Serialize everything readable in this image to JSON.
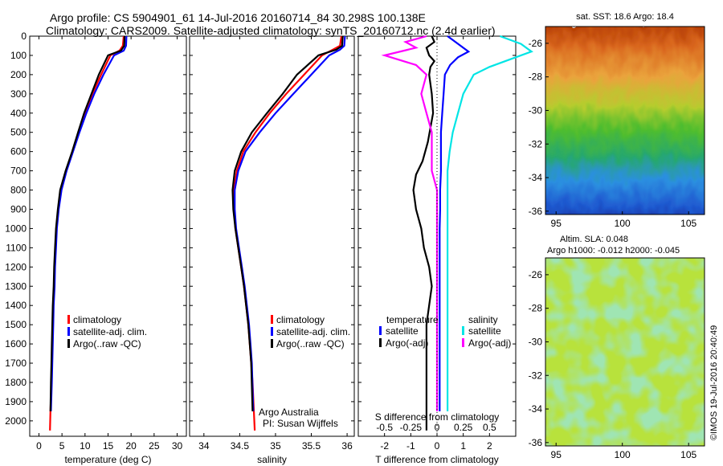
{
  "title_line1": "Argo profile: CS 5904901_61 14-Jul-2016 20160714_84 30.298S 100.138E",
  "title_line2": "Climatology: CARS2009. Satellite-adjusted climatology: synTS_20160712.nc (2.4d earlier)",
  "credit": "©IMOS 19-Jul-2016 20:40:49",
  "colors": {
    "climatology": "#ff0000",
    "satellite": "#0000ff",
    "argo": "#000000",
    "sal_sat": "#00e5e5",
    "sal_argo": "#ff00ff"
  },
  "chart_data": [
    {
      "type": "line",
      "xlabel": "temperature (deg C)",
      "xlim": [
        -2,
        32
      ],
      "xticks": [
        0,
        5,
        10,
        15,
        20,
        25,
        30
      ],
      "ylim": [
        2080,
        0
      ],
      "yticks": [
        0,
        100,
        200,
        300,
        400,
        500,
        600,
        700,
        800,
        900,
        1000,
        1100,
        1200,
        1300,
        1400,
        1500,
        1600,
        1700,
        1800,
        1900,
        2000
      ],
      "legend": [
        "climatology",
        "satellite-adj. clim.",
        "Argo(..raw -QC)"
      ],
      "legend_position": "lower-center",
      "series": [
        {
          "name": "climatology",
          "x": [
            18.4,
            18.2,
            17.5,
            15.5,
            13.5,
            11.6,
            10.0,
            8.6,
            7.3,
            5.9,
            4.8,
            4.2,
            3.8,
            3.6,
            3.4,
            3.3,
            3.1,
            3.0,
            2.9,
            2.8,
            2.7,
            2.5,
            2.4
          ],
          "y": [
            0,
            50,
            75,
            100,
            200,
            300,
            400,
            500,
            600,
            700,
            800,
            900,
            1000,
            1100,
            1200,
            1300,
            1400,
            1500,
            1600,
            1700,
            1800,
            1950,
            2050
          ]
        },
        {
          "name": "satellite-adj. clim.",
          "x": [
            19.0,
            18.9,
            18.4,
            16.3,
            14.0,
            12.0,
            10.3,
            8.8,
            7.4,
            6.0,
            4.9,
            4.3,
            3.9,
            3.7,
            3.5,
            3.4,
            3.2,
            3.1,
            3.0,
            2.9,
            2.8,
            2.6
          ],
          "y": [
            0,
            50,
            75,
            100,
            200,
            300,
            400,
            500,
            600,
            700,
            800,
            900,
            1000,
            1100,
            1200,
            1300,
            1400,
            1500,
            1600,
            1700,
            1800,
            1950
          ]
        },
        {
          "name": "Argo(..raw -QC)",
          "x": [
            18.6,
            18.5,
            17.8,
            15.0,
            13.0,
            11.4,
            9.8,
            8.5,
            7.2,
            5.8,
            4.6,
            4.1,
            3.7,
            3.5,
            3.3,
            3.2,
            3.0,
            2.9,
            2.8,
            2.7,
            2.6,
            2.5
          ],
          "y": [
            0,
            50,
            75,
            100,
            200,
            300,
            400,
            500,
            600,
            700,
            800,
            900,
            1000,
            1100,
            1200,
            1300,
            1400,
            1500,
            1600,
            1700,
            1800,
            1950
          ]
        }
      ]
    },
    {
      "type": "line",
      "xlabel": "salinity",
      "xlim": [
        33.8,
        36.1
      ],
      "xticks": [
        34,
        34.5,
        35,
        35.5,
        36
      ],
      "ylim": [
        2080,
        0
      ],
      "legend": [
        "climatology",
        "satellite-adj. clim.",
        "Argo(..raw -QC)"
      ],
      "legend_position": "lower-right",
      "annotations": [
        "Argo Australia",
        "PI: Susan Wijffels"
      ],
      "series": [
        {
          "name": "climatology",
          "x": [
            35.92,
            35.9,
            35.8,
            35.65,
            35.4,
            35.15,
            34.92,
            34.72,
            34.55,
            34.46,
            34.42,
            34.42,
            34.44,
            34.48,
            34.52,
            34.56,
            34.59,
            34.62,
            34.64,
            34.66,
            34.68,
            34.71
          ],
          "y": [
            0,
            50,
            70,
            100,
            200,
            300,
            400,
            500,
            600,
            700,
            800,
            900,
            1000,
            1100,
            1200,
            1300,
            1400,
            1500,
            1600,
            1700,
            1800,
            2050
          ]
        },
        {
          "name": "satellite-adj. clim.",
          "x": [
            35.97,
            35.96,
            35.9,
            35.75,
            35.5,
            35.25,
            35.0,
            34.78,
            34.58,
            34.48,
            34.43,
            34.43,
            34.45,
            34.49,
            34.53,
            34.57,
            34.6,
            34.63,
            34.65,
            34.67,
            34.69
          ],
          "y": [
            0,
            50,
            70,
            100,
            200,
            300,
            400,
            500,
            600,
            700,
            800,
            900,
            1000,
            1100,
            1200,
            1300,
            1400,
            1500,
            1600,
            1700,
            1950
          ]
        },
        {
          "name": "Argo(..raw -QC)",
          "x": [
            35.94,
            35.93,
            35.85,
            35.6,
            35.3,
            35.1,
            34.88,
            34.67,
            34.52,
            34.43,
            34.4,
            34.41,
            34.44,
            34.48,
            34.52,
            34.56,
            34.59,
            34.62,
            34.64,
            34.66,
            34.68
          ],
          "y": [
            0,
            50,
            70,
            100,
            200,
            300,
            400,
            500,
            600,
            700,
            800,
            900,
            1000,
            1100,
            1200,
            1300,
            1400,
            1500,
            1600,
            1700,
            1950
          ]
        }
      ]
    },
    {
      "type": "line",
      "xlabel": "T difference from climatology",
      "x2label": "S difference from climatology",
      "xlim": [
        -3,
        3
      ],
      "xticks": [
        -2,
        -1,
        0,
        1,
        2
      ],
      "x2ticks": [
        -0.5,
        -0.25,
        0,
        0.25,
        0.5
      ],
      "ylim": [
        2080,
        0
      ],
      "legend_temperature": {
        "title": "temperature",
        "items": [
          "satellite",
          "Argo(-adj)"
        ]
      },
      "legend_salinity": {
        "title": "salinity",
        "items": [
          "satellite",
          "Argo(-adj)"
        ]
      },
      "series": [
        {
          "name": "temperature satellite",
          "x": [
            0.4,
            0.6,
            0.9,
            1.2,
            0.8,
            0.5,
            0.3,
            0.25,
            0.2,
            0.15,
            0.15,
            0.15,
            0.12,
            0.12,
            0.1,
            0.1,
            0.1,
            0.1,
            0.1,
            0.1,
            0.1,
            0.1,
            0.1
          ],
          "y": [
            0,
            20,
            50,
            80,
            110,
            150,
            200,
            300,
            400,
            500,
            600,
            700,
            800,
            900,
            1000,
            1200,
            1300,
            1400,
            1500,
            1600,
            1700,
            1800,
            1950
          ]
        },
        {
          "name": "temperature Argo(-adj)",
          "x": [
            -0.2,
            -0.1,
            -0.4,
            -0.3,
            -0.1,
            -0.25,
            -0.3,
            -0.2,
            -0.15,
            -0.35,
            -0.55,
            -0.8,
            -0.9,
            -0.8,
            -0.6,
            -0.5,
            -0.3,
            -0.2,
            -0.3,
            -0.4,
            -0.4,
            -0.4,
            -0.4,
            -0.4,
            -0.4,
            -0.4,
            -0.4
          ],
          "y": [
            0,
            30,
            60,
            100,
            130,
            160,
            200,
            300,
            400,
            550,
            650,
            720,
            800,
            900,
            1000,
            1100,
            1200,
            1300,
            1400,
            1500,
            1600,
            1700,
            1800,
            1900,
            1950,
            2000,
            2050
          ]
        },
        {
          "name": "salinity satellite",
          "x": [
            0.6,
            0.8,
            0.9,
            0.7,
            0.5,
            0.35,
            0.25,
            0.2,
            0.15,
            0.12,
            0.1,
            0.1,
            0.1,
            0.1,
            0.1,
            0.1,
            0.1,
            0.1,
            0.1,
            0.1,
            0.1
          ],
          "y": [
            0,
            40,
            80,
            120,
            160,
            200,
            300,
            400,
            500,
            600,
            700,
            800,
            900,
            1000,
            1100,
            1200,
            1400,
            1600,
            1700,
            1800,
            1950
          ]
        },
        {
          "name": "salinity Argo(-adj)",
          "x": [
            -0.1,
            -0.3,
            -0.2,
            -0.5,
            -0.2,
            -0.1,
            -0.15,
            -0.1,
            -0.05,
            -0.05,
            -0.05,
            0,
            0,
            0,
            0,
            0,
            0,
            0,
            0
          ],
          "y": [
            0,
            30,
            60,
            100,
            150,
            200,
            300,
            400,
            500,
            600,
            700,
            800,
            900,
            1000,
            1200,
            1400,
            1600,
            1800,
            1950
          ]
        }
      ]
    },
    {
      "type": "heatmap",
      "title": "sat. SST: 18.6 Argo: 18.4",
      "xlim": [
        94.2,
        106.2
      ],
      "ylim": [
        -36.2,
        -25.0
      ],
      "xticks": [
        95,
        100,
        105
      ],
      "yticks": [
        -26,
        -28,
        -30,
        -32,
        -34,
        -36
      ]
    },
    {
      "type": "heatmap",
      "title_line1": "Altim. SLA: 0.048",
      "title_line2": "Argo h1000: -0.012 h2000: -0.045",
      "xlim": [
        94.2,
        106.2
      ],
      "ylim": [
        -36.2,
        -25.0
      ],
      "xticks": [
        95,
        100,
        105
      ],
      "yticks": [
        -26,
        -28,
        -30,
        -32,
        -34,
        -36
      ]
    }
  ]
}
